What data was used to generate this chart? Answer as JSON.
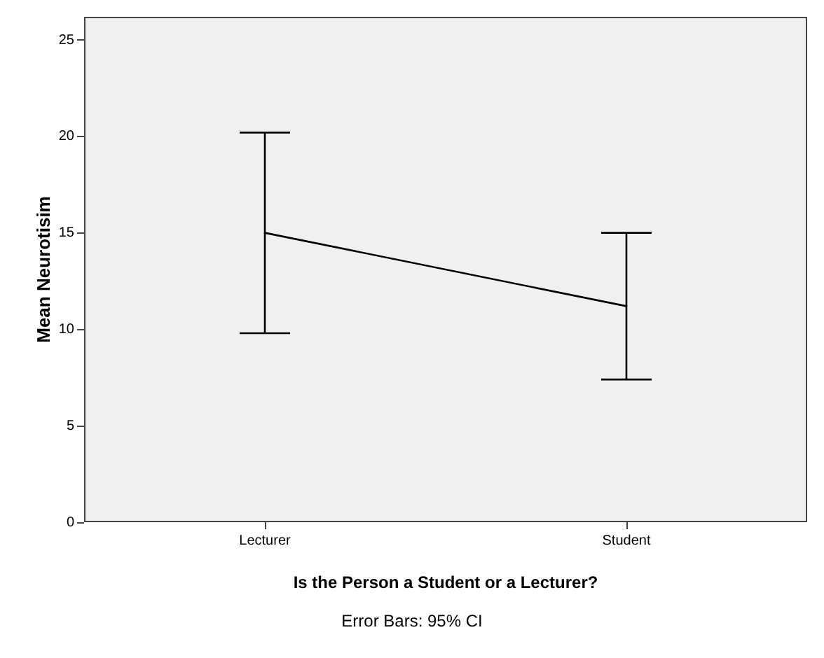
{
  "chart_data": {
    "type": "line",
    "xlabel": "Is the Person a Student or a Lecturer?",
    "ylabel": "Mean Neurotisim",
    "annotations": [
      "Error Bars: 95% CI"
    ],
    "categories": [
      "Lecturer",
      "Student"
    ],
    "values": [
      15.0,
      11.2
    ],
    "errors": [
      [
        9.8,
        20.2
      ],
      [
        7.4,
        15.0
      ]
    ],
    "color": "#000000",
    "ylim": [
      0,
      26.2
    ],
    "yticks": [
      0,
      5,
      10,
      15,
      20,
      25
    ],
    "grid": false,
    "marker": "none"
  }
}
